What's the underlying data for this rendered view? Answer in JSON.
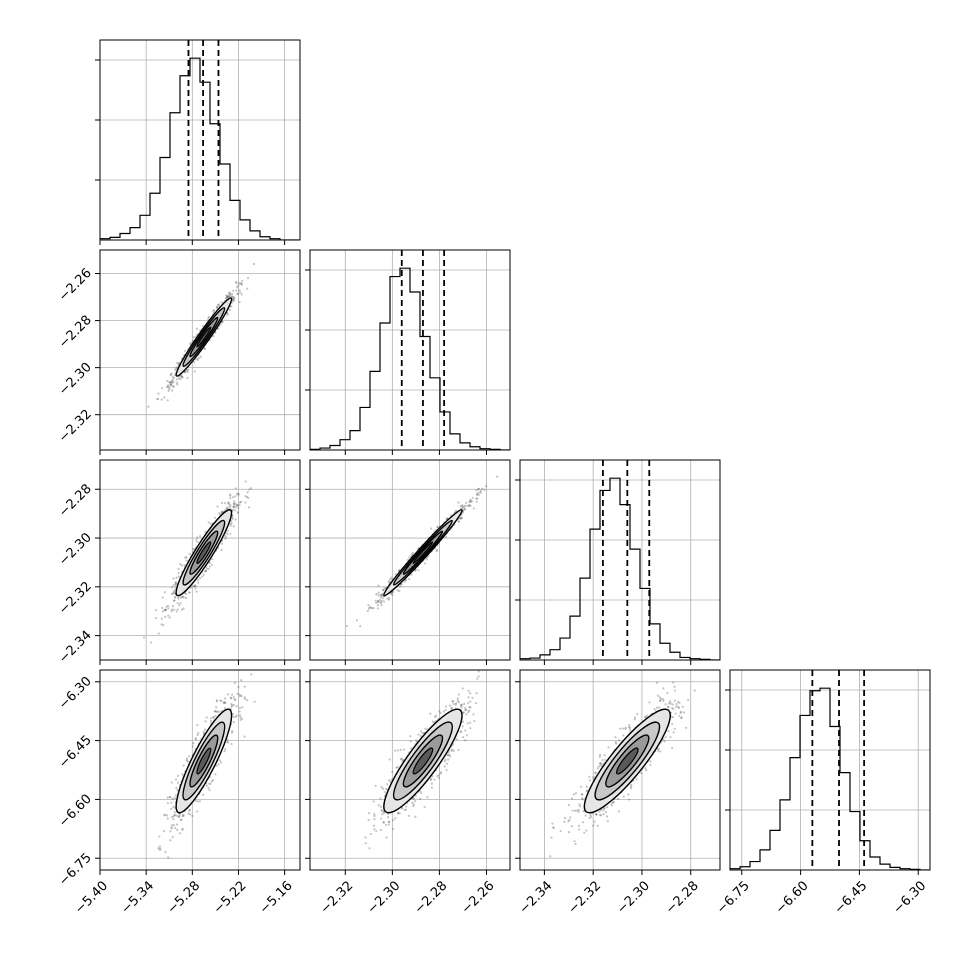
{
  "colors": {
    "line": "#000000",
    "grid": "#b0b0b0",
    "points": "#555555",
    "background": "#ffffff"
  },
  "chart_data": {
    "type": "corner",
    "grid": true,
    "params": [
      {
        "range": [
          -5.4,
          -5.14
        ],
        "ticks": [
          -5.4,
          -5.34,
          -5.28,
          -5.22,
          -5.16
        ],
        "tick_labels": [
          "−5.40",
          "−5.34",
          "−5.28",
          "−5.22",
          "−5.16"
        ],
        "mean": -5.265,
        "std": 0.018,
        "quantiles": [
          -5.285,
          -5.266,
          -5.246
        ]
      },
      {
        "range": [
          -2.335,
          -2.25
        ],
        "ticks": [
          -2.32,
          -2.3,
          -2.28,
          -2.26
        ],
        "tick_labels": [
          "−2.32",
          "−2.30",
          "−2.28",
          "−2.26"
        ],
        "mean": -2.287,
        "std": 0.0083,
        "quantiles": [
          -2.296,
          -2.287,
          -2.278
        ]
      },
      {
        "range": [
          -2.35,
          -2.268
        ],
        "ticks": [
          -2.34,
          -2.32,
          -2.3,
          -2.28
        ],
        "tick_labels": [
          "−2.34",
          "−2.32",
          "−2.30",
          "−2.28"
        ],
        "mean": -2.306,
        "std": 0.0088,
        "quantiles": [
          -2.316,
          -2.306,
          -2.297
        ]
      },
      {
        "range": [
          -6.78,
          -6.27
        ],
        "ticks": [
          -6.75,
          -6.6,
          -6.45,
          -6.3
        ],
        "tick_labels": [
          "−6.75",
          "−6.60",
          "−6.45",
          "−6.30"
        ],
        "mean": -6.502,
        "std": 0.066,
        "quantiles": [
          -6.57,
          -6.502,
          -6.438
        ]
      }
    ],
    "correlations": [
      [
        1,
        0.97,
        0.93,
        0.88
      ],
      [
        0.97,
        1,
        0.985,
        0.88
      ],
      [
        0.93,
        0.985,
        1,
        0.88
      ],
      [
        0.88,
        0.88,
        0.88,
        1
      ]
    ],
    "histograms": [
      {
        "bins": 20,
        "counts": [
          2,
          4,
          10,
          19,
          38,
          72,
          127,
          196,
          253,
          280,
          243,
          179,
          117,
          61,
          31,
          14,
          5,
          2,
          0,
          0
        ]
      },
      {
        "bins": 20,
        "counts": [
          1,
          3,
          7,
          16,
          30,
          66,
          122,
          197,
          269,
          282,
          245,
          176,
          112,
          59,
          25,
          11,
          5,
          2,
          1,
          0
        ]
      },
      {
        "bins": 20,
        "counts": [
          2,
          3,
          8,
          16,
          34,
          68,
          127,
          203,
          263,
          282,
          241,
          172,
          111,
          56,
          26,
          12,
          4,
          2,
          1,
          0
        ]
      },
      {
        "bins": 20,
        "counts": [
          2,
          5,
          13,
          31,
          61,
          108,
          173,
          238,
          276,
          280,
          221,
          150,
          90,
          45,
          20,
          9,
          4,
          2,
          1,
          0
        ]
      }
    ]
  }
}
